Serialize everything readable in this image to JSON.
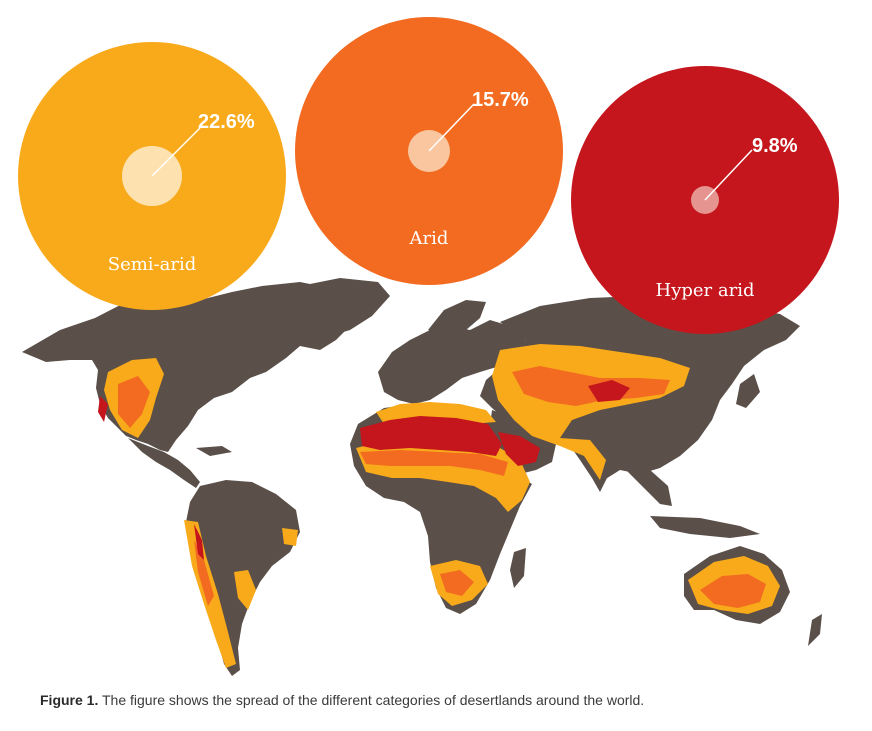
{
  "categories": [
    {
      "key": "semi_arid",
      "label": "Semi-arid",
      "percent_label": "22.6%",
      "percent": 22.6,
      "color": "#f8aa1a",
      "inner_color": "#fde2b0"
    },
    {
      "key": "arid",
      "label": "Arid",
      "percent_label": "15.7%",
      "percent": 15.7,
      "color": "#f26b21",
      "inner_color": "#f9c6a0"
    },
    {
      "key": "hyper_arid",
      "label": "Hyper arid",
      "percent_label": "9.8%",
      "percent": 9.8,
      "color": "#c4161c",
      "inner_color": "#e6948f"
    }
  ],
  "map": {
    "land_color": "#5a4f49",
    "semi_arid_color": "#f8aa1a",
    "arid_color": "#f26b21",
    "hyper_arid_color": "#c4161c"
  },
  "caption": {
    "label": "Figure 1.",
    "text": " The figure shows the spread of the different categories of desertlands around the world."
  }
}
